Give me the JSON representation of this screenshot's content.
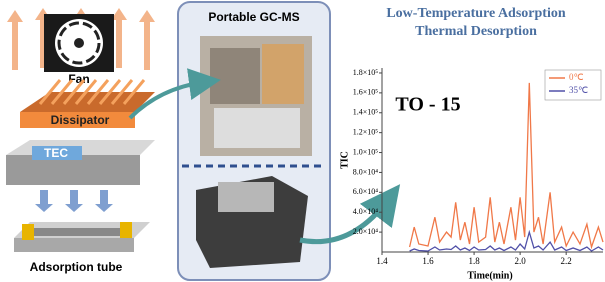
{
  "diagram": {
    "fan": "Fan",
    "dissipator": "Dissipator",
    "tec": "TEC",
    "tube": "Adsorption tube"
  },
  "center": {
    "title": "Portable GC-MS"
  },
  "chart_data": {
    "type": "line",
    "title": "Low-Temperature Adsorption",
    "subtitle": "Thermal Desorption",
    "annotation": "TO - 15",
    "x_label": "Time(min)",
    "y_label": "TIC",
    "x": [
      1.52,
      1.54,
      1.56,
      1.6,
      1.63,
      1.65,
      1.68,
      1.7,
      1.72,
      1.74,
      1.76,
      1.78,
      1.8,
      1.82,
      1.85,
      1.87,
      1.89,
      1.91,
      1.93,
      1.96,
      1.98,
      2.0,
      2.02,
      2.04,
      2.06,
      2.08,
      2.1,
      2.13,
      2.15,
      2.18,
      2.2,
      2.23,
      2.26,
      2.29,
      2.31,
      2.34,
      2.36
    ],
    "series": [
      {
        "name": "0℃",
        "color": "#f07848",
        "values": [
          5000,
          25000,
          8000,
          6000,
          35000,
          10000,
          20000,
          15000,
          50000,
          12000,
          30000,
          8000,
          45000,
          10000,
          15000,
          55000,
          10000,
          30000,
          8000,
          45000,
          12000,
          55000,
          15000,
          170000,
          20000,
          35000,
          8000,
          60000,
          10000,
          25000,
          6000,
          20000,
          8000,
          28000,
          5000,
          25000,
          10000
        ]
      },
      {
        "name": "35℃",
        "color": "#5050a8",
        "values": [
          1000,
          3000,
          1500,
          1000,
          5000,
          2000,
          3000,
          2500,
          6000,
          2000,
          4000,
          1500,
          5000,
          2000,
          2500,
          6000,
          2000,
          4000,
          1500,
          5000,
          2000,
          8000,
          3000,
          20000,
          4000,
          6000,
          2000,
          10000,
          2000,
          5000,
          1500,
          4000,
          1500,
          5000,
          1000,
          5000,
          2000
        ]
      }
    ],
    "xlim": [
      1.4,
      2.36
    ],
    "xticks": [
      1.4,
      1.6,
      1.8,
      {
        "value": 2,
        "label": "2.0"
      },
      2.2
    ],
    "ylim": [
      0,
      185000
    ],
    "yticks": [
      {
        "value": 20000,
        "label": "2.0×10⁴"
      },
      {
        "value": 40000,
        "label": "4.0×10⁴"
      },
      {
        "value": 60000,
        "label": "6.0×10⁴"
      },
      {
        "value": 80000,
        "label": "8.0×10⁴"
      },
      {
        "value": 100000,
        "label": "1.0×10⁵"
      },
      {
        "value": 120000,
        "label": "1.2×10⁵"
      },
      {
        "value": 140000,
        "label": "1.4×10⁵"
      },
      {
        "value": 160000,
        "label": "1.6×10⁵"
      },
      {
        "value": 180000,
        "label": "1.8×10⁵"
      }
    ],
    "legend": "upper right"
  }
}
